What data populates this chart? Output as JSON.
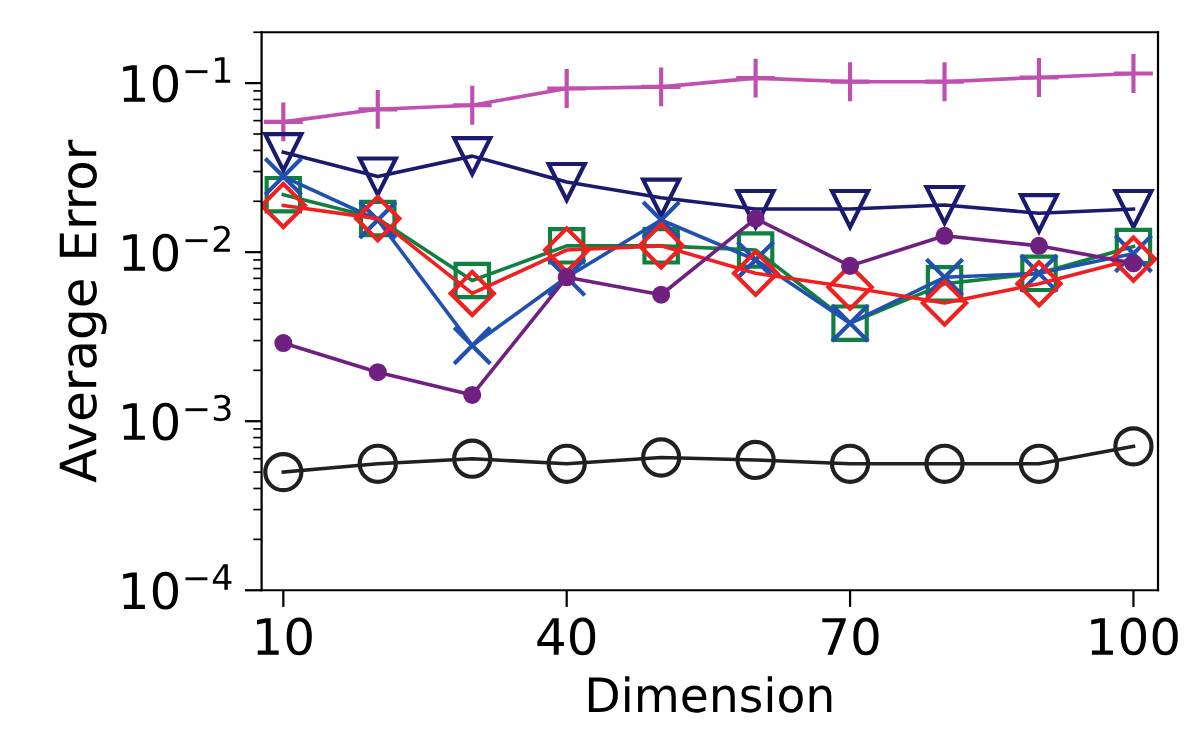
{
  "chart_data": {
    "type": "line",
    "xlabel": "Dimension",
    "ylabel": "Average Error",
    "log": "y",
    "x": [
      10,
      20,
      30,
      40,
      50,
      60,
      70,
      80,
      90,
      100
    ],
    "xlim": [
      7.7,
      102.6
    ],
    "xticks": [
      10,
      40,
      70,
      100
    ],
    "ylim": [
      0.0001,
      0.2
    ],
    "yticks": [
      {
        "value": 0.0001,
        "label": "10$^{−4}$"
      },
      {
        "value": 0.001,
        "label": "10$^{−3}$"
      },
      {
        "value": 0.01,
        "label": "10$^{−2}$"
      },
      {
        "value": 0.1,
        "label": "10$^{−1}$"
      }
    ],
    "grid": false,
    "legend": false,
    "series": [
      {
        "color": "#c050b0",
        "marker": "plus",
        "values": [
          0.059,
          0.07,
          0.074,
          0.093,
          0.095,
          0.107,
          0.102,
          0.102,
          0.108,
          0.114
        ]
      },
      {
        "color": "#1a1a6e",
        "marker": "triangle_down",
        "values": [
          0.039,
          0.028,
          0.037,
          0.026,
          0.021,
          0.018,
          0.018,
          0.019,
          0.017,
          0.018
        ]
      },
      {
        "color": "#702080",
        "marker": "point",
        "values": [
          0.0029,
          0.00195,
          0.00143,
          0.0071,
          0.0056,
          0.0158,
          0.0083,
          0.0125,
          0.0109,
          0.0086
        ]
      },
      {
        "color": "#108040",
        "marker": "square",
        "values": [
          0.0219,
          0.0158,
          0.0068,
          0.0109,
          0.0109,
          0.0103,
          0.0038,
          0.0065,
          0.0075,
          0.0108
        ]
      },
      {
        "color": "#2050b0",
        "marker": "cross",
        "values": [
          0.028,
          0.0155,
          0.0028,
          0.0071,
          0.0155,
          0.009,
          0.0038,
          0.0071,
          0.0075,
          0.0098
        ]
      },
      {
        "color": "#f02020",
        "marker": "diamond",
        "values": [
          0.0189,
          0.0158,
          0.0057,
          0.0103,
          0.0109,
          0.0075,
          0.0062,
          0.005,
          0.0065,
          0.0091
        ]
      },
      {
        "color": "#202020",
        "marker": "circle",
        "values": [
          0.0005,
          0.00056,
          0.0006,
          0.00056,
          0.00061,
          0.00059,
          0.00056,
          0.00056,
          0.00056,
          0.00071
        ]
      }
    ]
  }
}
